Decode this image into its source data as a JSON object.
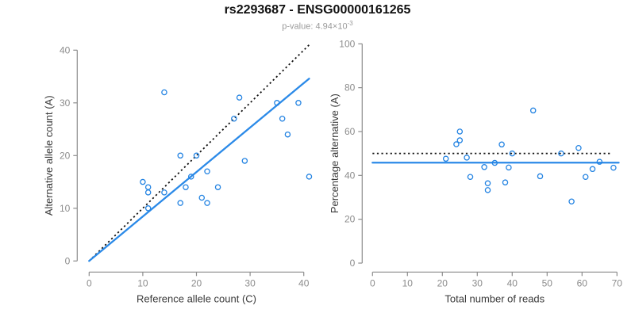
{
  "header": {
    "title": "rs2293687 - ENSG00000161265",
    "pvalue_label": "p-value: ",
    "pvalue_mantissa": "4.94",
    "pvalue_times_base": "×10",
    "pvalue_exponent": "-3"
  },
  "colors": {
    "background": "#ffffff",
    "point_blue": "#2383e2",
    "fit_line_blue": "#2b8ae8",
    "reference_line_black": "#111111",
    "axis_gray": "#8c8c8c",
    "tick_label_gray": "#8c8c8c",
    "axis_title_dark": "#3a3a3a",
    "title_black": "#111111",
    "subtitle_gray": "#9a9a9a"
  },
  "chart_data": [
    {
      "type": "scatter",
      "panel": "left",
      "xlabel": "Reference allele count (C)",
      "ylabel": "Alternative allele count (A)",
      "xlim": [
        0,
        41.5
      ],
      "ylim": [
        0,
        41.5
      ],
      "xticks": [
        0,
        10,
        20,
        30,
        40
      ],
      "yticks": [
        0,
        10,
        20,
        30,
        40
      ],
      "grid": false,
      "legend": "none",
      "points": [
        [
          14,
          32
        ],
        [
          28,
          31
        ],
        [
          35,
          30
        ],
        [
          39,
          30
        ],
        [
          36,
          27
        ],
        [
          27,
          27
        ],
        [
          37,
          24
        ],
        [
          17,
          20
        ],
        [
          20,
          20
        ],
        [
          29,
          19
        ],
        [
          22,
          17
        ],
        [
          41,
          16
        ],
        [
          19,
          16
        ],
        [
          10,
          15
        ],
        [
          11,
          14
        ],
        [
          11,
          13
        ],
        [
          14,
          13
        ],
        [
          18,
          14
        ],
        [
          24,
          14
        ],
        [
          21,
          12
        ],
        [
          22,
          11
        ],
        [
          17,
          11
        ],
        [
          11,
          10
        ]
      ],
      "lines": [
        {
          "name": "identity-line",
          "style": "dotted",
          "color_key": "reference_line_black",
          "x1": 0,
          "y1": 0,
          "x2": 41,
          "y2": 41
        },
        {
          "name": "fit-line",
          "style": "solid",
          "color_key": "fit_line_blue",
          "x1": 0,
          "y1": 0,
          "x2": 41,
          "y2": 34.6
        }
      ]
    },
    {
      "type": "scatter",
      "panel": "right",
      "xlabel": "Total number of reads",
      "ylabel": "Percentage alternative (A)",
      "xlim": [
        0,
        70.5
      ],
      "ylim": [
        0,
        100
      ],
      "xticks": [
        0,
        10,
        20,
        30,
        40,
        50,
        60,
        70
      ],
      "yticks": [
        0,
        20,
        40,
        60,
        80,
        100
      ],
      "grid": false,
      "legend": "none",
      "points": [
        [
          46,
          69.6
        ],
        [
          59,
          52.5
        ],
        [
          65,
          46.2
        ],
        [
          69,
          43.5
        ],
        [
          63,
          42.9
        ],
        [
          54,
          50.0
        ],
        [
          61,
          39.3
        ],
        [
          37,
          54.1
        ],
        [
          40,
          50.0
        ],
        [
          48,
          39.6
        ],
        [
          39,
          43.6
        ],
        [
          57,
          28.1
        ],
        [
          35,
          45.7
        ],
        [
          25,
          60.0
        ],
        [
          25,
          56.0
        ],
        [
          24,
          54.2
        ],
        [
          27,
          48.1
        ],
        [
          32,
          43.8
        ],
        [
          38,
          36.8
        ],
        [
          33,
          36.4
        ],
        [
          33,
          33.3
        ],
        [
          28,
          39.3
        ],
        [
          21,
          47.6
        ]
      ],
      "lines": [
        {
          "name": "expected-percentage-line",
          "style": "dotted",
          "color_key": "reference_line_black",
          "x1": 0,
          "y1": 50,
          "x2": 68.5,
          "y2": 50
        },
        {
          "name": "fit-percentage-line",
          "style": "solid",
          "color_key": "fit_line_blue",
          "x1": 0,
          "y1": 45.8,
          "x2": 70.5,
          "y2": 45.8
        }
      ]
    }
  ]
}
